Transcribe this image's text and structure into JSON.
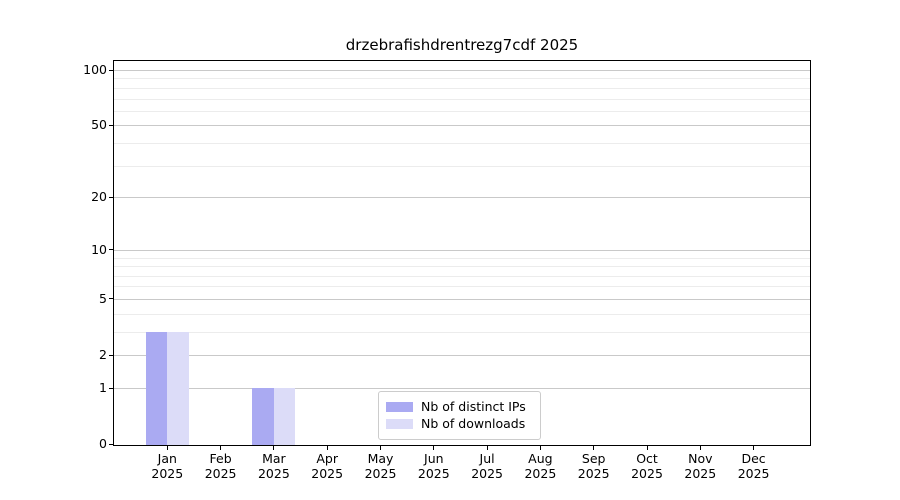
{
  "page": {
    "background": "#ffffff"
  },
  "chart_data": {
    "type": "bar",
    "title": "drzebrafishdrentrezg7cdf 2025",
    "year_label": "2025",
    "categories": [
      "Jan",
      "Feb",
      "Mar",
      "Apr",
      "May",
      "Jun",
      "Jul",
      "Aug",
      "Sep",
      "Oct",
      "Nov",
      "Dec"
    ],
    "series": [
      {
        "name": "Nb of distinct IPs",
        "color": "#aaaaf2",
        "values": [
          3,
          0,
          1,
          0,
          0,
          0,
          0,
          0,
          0,
          0,
          0,
          0
        ]
      },
      {
        "name": "Nb of downloads",
        "color": "#dcdcf8",
        "values": [
          3,
          0,
          1,
          0,
          0,
          0,
          0,
          0,
          0,
          0,
          0,
          0
        ]
      }
    ],
    "yticks": [
      0,
      1,
      2,
      5,
      10,
      20,
      50,
      100
    ],
    "ylim": [
      0,
      113
    ],
    "yscale": "log10(1+y)",
    "grid": {
      "major": true,
      "minor": true,
      "orientation": "horizontal"
    },
    "legend_position": "lower center",
    "colors": {
      "grid_major": "#c9c9c9",
      "grid_minor": "#ececec",
      "axis": "#000000"
    }
  }
}
